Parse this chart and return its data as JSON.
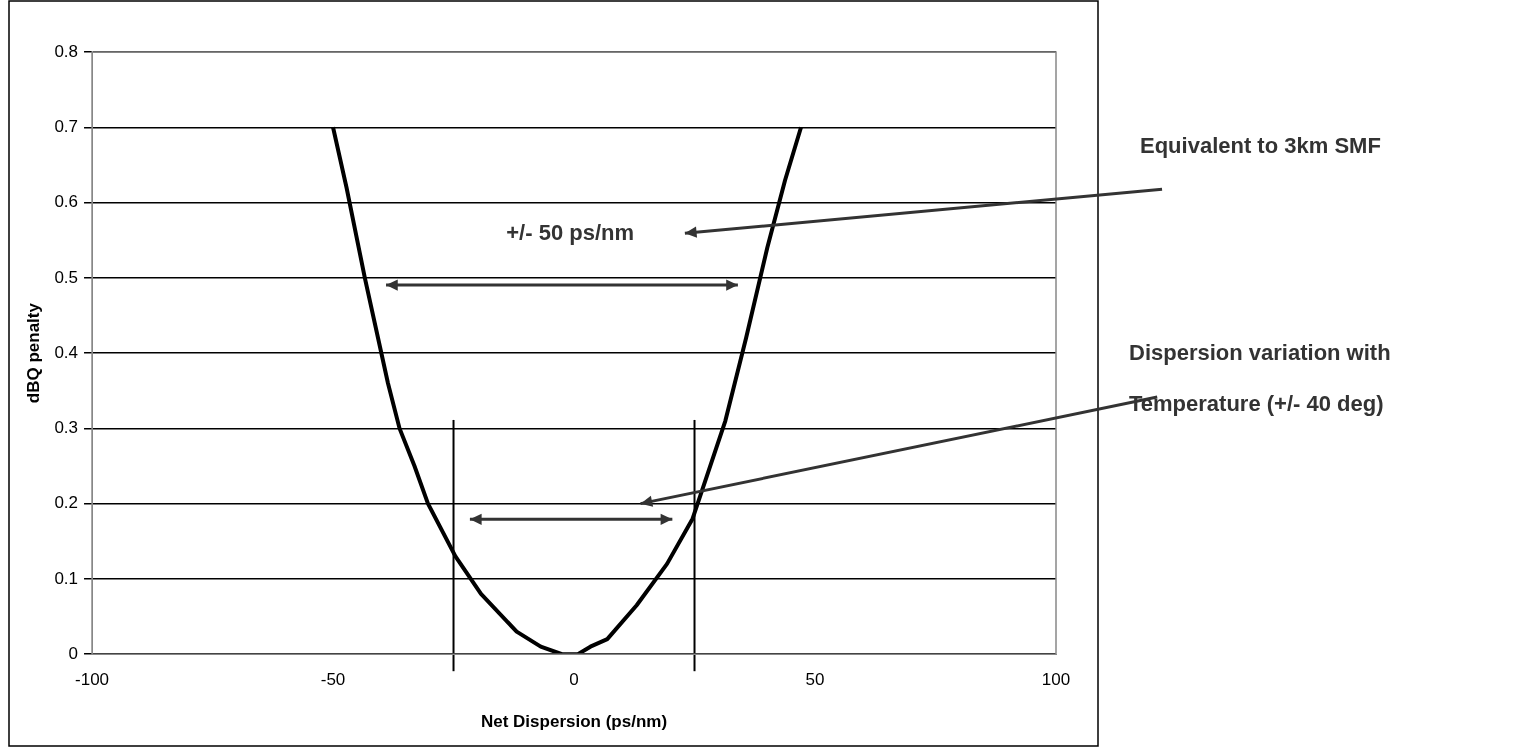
{
  "chart_data": {
    "type": "line",
    "xlabel": "Net Dispersion (ps/nm)",
    "ylabel": "dBQ penalty",
    "x": [
      -50,
      -47.2,
      -43.4,
      -38.6,
      -36.2,
      -33.1,
      -30.3,
      -24.6,
      -19.3,
      -11.9,
      -6.9,
      -2.5,
      0.8,
      3.4,
      6.9,
      13,
      19.3,
      24.6,
      31.4,
      35.7,
      40.1,
      43.8,
      47.1
    ],
    "series": [
      {
        "color": "#000000",
        "values": [
          0.7,
          0.62,
          0.5,
          0.36,
          0.3,
          0.25,
          0.2,
          0.13,
          0.08,
          0.03,
          0.01,
          0,
          0,
          0.01,
          0.02,
          0.065,
          0.12,
          0.18,
          0.31,
          0.42,
          0.54,
          0.63,
          0.7
        ]
      }
    ],
    "xlim": [
      -100,
      100
    ],
    "xticks": [
      -100,
      -50,
      0,
      50,
      100
    ],
    "ylim": [
      0,
      0.8
    ],
    "yticks": [
      0,
      0.1,
      0.2,
      0.3,
      0.4,
      0.5,
      0.6,
      0.7,
      0.8
    ],
    "grid": "y",
    "legend": false,
    "marker": "none",
    "line_style": "solid",
    "ref_lines": [
      {
        "axis": "x",
        "value": -25,
        "color": "#000000"
      },
      {
        "axis": "x",
        "value": 25,
        "color": "#000000"
      }
    ],
    "annotations": [
      "+/- 50 ps/nm",
      "Equivalent to 3km SMF",
      "Dispersion variation with Temperature (+/- 40 deg)"
    ]
  }
}
